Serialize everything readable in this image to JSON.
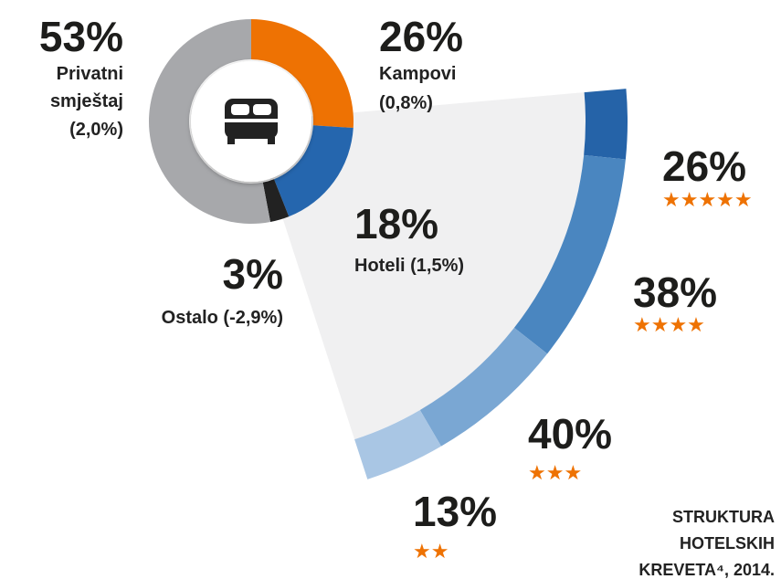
{
  "chart_data": {
    "type": "donut",
    "categories": [
      [
        "Kampovi",
        "(0,8%)"
      ],
      [
        "Hoteli (1,5%)"
      ],
      [
        "Ostalo (-2,9%)"
      ],
      [
        "Privatni",
        "smještaj",
        "(2,0%)"
      ]
    ],
    "values": [
      26,
      18,
      3,
      53
    ],
    "value_labels": [
      "26%",
      "18%",
      "3%",
      "53%"
    ],
    "colors": [
      "#ee7203",
      "#2566ae",
      "#222222",
      "#a7a8ab"
    ],
    "breakdown": {
      "type": "arc",
      "shares": [
        14,
        42,
        28,
        16
      ],
      "values": [
        26,
        38,
        40,
        13
      ],
      "value_labels": [
        "26%",
        "38%",
        "40%",
        "13%"
      ],
      "stars": [
        "★★★★★",
        "★★★★",
        "★★★",
        "★★"
      ],
      "colors": [
        "#2563a8",
        "#4a86c0",
        "#7aa7d3",
        "#a9c6e4"
      ]
    },
    "title": [
      "STRUKTURA",
      "HOTELSKIH",
      "KREVETA⁴, 2014."
    ]
  }
}
